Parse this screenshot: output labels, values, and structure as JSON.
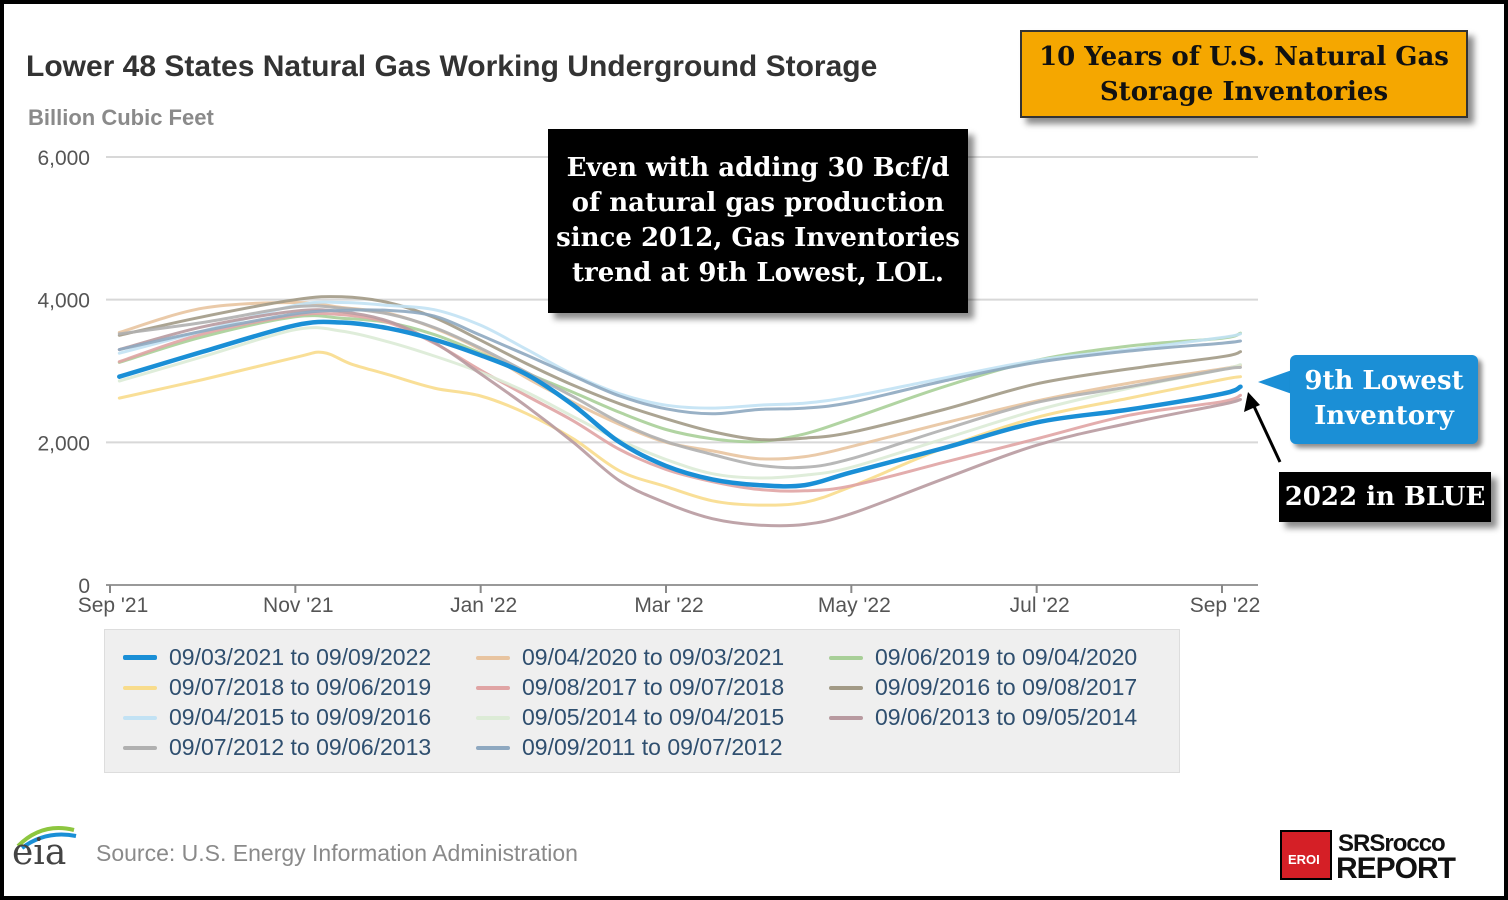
{
  "header": {
    "title": "Lower 48 States Natural Gas Working Underground Storage",
    "unit_label": "Billion Cubic Feet"
  },
  "annotations": {
    "top_right_box": [
      "10 Years of U.S. Natural Gas",
      "Storage Inventories"
    ],
    "center_box": [
      "Even with adding 30 Bcf/d",
      "of natural gas production",
      "since 2012, Gas Inventories",
      "trend at 9th Lowest,  LOL."
    ],
    "callout_box": [
      "9th Lowest",
      "Inventory"
    ],
    "year_box": "2022 in BLUE"
  },
  "footer": {
    "source": "Source: U.S. Energy Information Administration",
    "eia_logo_text": "eia",
    "brand_badge_text": "EROI",
    "brand_line1": "SRSrocco",
    "brand_line2": "REPORT"
  },
  "colors": {
    "frame": "#000000",
    "grid": "#d8d8d8",
    "orange_box": "#f5a700",
    "blue_box": "#1b8fd6"
  },
  "chart_data": {
    "type": "line",
    "ylim": [
      0,
      6000
    ],
    "yticks": [
      0,
      2000,
      4000,
      6000
    ],
    "ytick_labels": [
      "0",
      "2,000",
      "4,000",
      "6,000"
    ],
    "xlim": [
      0,
      12.2
    ],
    "xticks": [
      0,
      2,
      4,
      6,
      8,
      10,
      12
    ],
    "xtick_labels": [
      "Sep '21",
      "Nov '21",
      "Jan '22",
      "Mar '22",
      "May '22",
      "Jul '22",
      "Sep '22"
    ],
    "x_unit": "months since Sep '21",
    "legend_placement": "bottom",
    "grid": true,
    "series": [
      {
        "name": "09/03/2021 to 09/09/2022",
        "color": "#1a8fd6",
        "width": 4.5,
        "x": [
          0.1,
          1,
          2,
          2.5,
          3,
          3.5,
          4,
          4.5,
          5,
          5.5,
          6,
          6.5,
          7,
          7.5,
          8,
          9,
          10,
          11,
          12,
          12.2
        ],
        "y": [
          2920,
          3270,
          3640,
          3680,
          3600,
          3440,
          3220,
          2950,
          2520,
          2000,
          1670,
          1480,
          1400,
          1400,
          1580,
          1920,
          2280,
          2460,
          2680,
          2780
        ]
      },
      {
        "name": "09/04/2020 to 09/03/2021",
        "color": "#e8c4a0",
        "width": 3,
        "x": [
          0.1,
          1,
          2,
          2.5,
          3,
          3.5,
          4,
          4.5,
          5,
          5.5,
          6,
          6.5,
          7,
          7.5,
          8,
          9,
          10,
          11,
          12,
          12.2
        ],
        "y": [
          3540,
          3880,
          3960,
          3890,
          3810,
          3600,
          3300,
          2900,
          2560,
          2250,
          2000,
          1880,
          1770,
          1800,
          1940,
          2270,
          2580,
          2830,
          3030,
          3080
        ]
      },
      {
        "name": "09/06/2019 to 09/04/2020",
        "color": "#a8cf98",
        "width": 3,
        "x": [
          0.1,
          1,
          2,
          2.5,
          3,
          3.5,
          4,
          4.5,
          5,
          5.5,
          6,
          6.5,
          7,
          7.5,
          8,
          9,
          10,
          11,
          12,
          12.2
        ],
        "y": [
          3120,
          3480,
          3760,
          3740,
          3680,
          3510,
          3250,
          2970,
          2700,
          2420,
          2180,
          2050,
          2010,
          2120,
          2330,
          2780,
          3150,
          3350,
          3460,
          3530
        ]
      },
      {
        "name": "09/07/2018 to 09/06/2019",
        "color": "#f8dc8c",
        "width": 3,
        "x": [
          0.1,
          1,
          2,
          2.3,
          2.6,
          3,
          3.5,
          4,
          4.5,
          5,
          5.5,
          6,
          6.5,
          7,
          7.5,
          8,
          9,
          10,
          11,
          12,
          12.2
        ],
        "y": [
          2620,
          2880,
          3190,
          3260,
          3100,
          2950,
          2760,
          2650,
          2400,
          2050,
          1600,
          1380,
          1180,
          1120,
          1160,
          1380,
          1920,
          2350,
          2620,
          2880,
          2920
        ]
      },
      {
        "name": "09/08/2017 to 09/07/2018",
        "color": "#e0a4a4",
        "width": 3,
        "x": [
          0.1,
          1,
          2,
          2.5,
          3,
          3.5,
          4,
          4.5,
          5,
          5.5,
          6,
          6.5,
          7,
          7.5,
          8,
          9,
          10,
          11,
          12,
          12.2
        ],
        "y": [
          3130,
          3520,
          3780,
          3790,
          3680,
          3390,
          3010,
          2650,
          2300,
          1900,
          1620,
          1450,
          1340,
          1320,
          1390,
          1720,
          2050,
          2380,
          2570,
          2660
        ]
      },
      {
        "name": "09/09/2016 to 09/08/2017",
        "color": "#a29a86",
        "width": 3,
        "x": [
          0.1,
          1,
          2,
          2.5,
          3,
          3.5,
          4,
          4.5,
          5,
          5.5,
          6,
          6.5,
          7,
          7.5,
          8,
          9,
          10,
          11,
          12,
          12.2
        ],
        "y": [
          3500,
          3760,
          4000,
          4040,
          3960,
          3750,
          3430,
          3100,
          2800,
          2540,
          2330,
          2150,
          2040,
          2060,
          2140,
          2460,
          2820,
          3030,
          3200,
          3270
        ]
      },
      {
        "name": "09/04/2015 to 09/09/2016",
        "color": "#c2e2f4",
        "width": 3,
        "x": [
          0.1,
          1,
          2,
          2.5,
          3,
          3.5,
          4,
          4.5,
          5,
          5.5,
          6,
          6.5,
          7,
          7.5,
          8,
          9,
          10,
          11,
          12,
          12.2
        ],
        "y": [
          3250,
          3560,
          3920,
          3960,
          3920,
          3860,
          3640,
          3300,
          2950,
          2680,
          2520,
          2480,
          2520,
          2550,
          2640,
          2900,
          3150,
          3300,
          3470,
          3520
        ]
      },
      {
        "name": "09/05/2014 to 09/04/2015",
        "color": "#dcebd6",
        "width": 3,
        "x": [
          0.1,
          1,
          2,
          2.5,
          3,
          3.5,
          4,
          4.5,
          5,
          5.5,
          6,
          6.5,
          7,
          7.5,
          8,
          9,
          10,
          11,
          12,
          12.2
        ],
        "y": [
          2860,
          3200,
          3580,
          3560,
          3410,
          3210,
          2980,
          2700,
          2360,
          2030,
          1760,
          1560,
          1500,
          1540,
          1650,
          2050,
          2450,
          2760,
          3020,
          3090
        ]
      },
      {
        "name": "09/06/2013 to 09/05/2014",
        "color": "#b89aa0",
        "width": 3,
        "x": [
          0.1,
          1,
          2,
          2.5,
          3,
          3.5,
          4,
          4.5,
          5,
          5.5,
          6,
          6.5,
          7,
          7.5,
          8,
          9,
          10,
          11,
          12,
          12.2
        ],
        "y": [
          3300,
          3620,
          3840,
          3830,
          3700,
          3400,
          2960,
          2500,
          2000,
          1460,
          1150,
          930,
          840,
          850,
          1000,
          1490,
          1960,
          2270,
          2530,
          2600
        ]
      },
      {
        "name": "09/07/2012 to 09/06/2013",
        "color": "#b0b0b0",
        "width": 3,
        "x": [
          0.1,
          1,
          2,
          2.5,
          3,
          3.5,
          4,
          4.5,
          5,
          5.5,
          6,
          6.5,
          7,
          7.5,
          8,
          9,
          10,
          11,
          12,
          12.2
        ],
        "y": [
          3520,
          3680,
          3900,
          3880,
          3800,
          3610,
          3320,
          2980,
          2640,
          2280,
          2010,
          1830,
          1680,
          1650,
          1770,
          2180,
          2560,
          2780,
          3020,
          3050
        ]
      },
      {
        "name": "09/09/2011 to 09/07/2012",
        "color": "#8ea8c0",
        "width": 3,
        "x": [
          0.1,
          1,
          2,
          2.5,
          3,
          3.5,
          4,
          4.5,
          5,
          5.5,
          6,
          6.5,
          7,
          7.5,
          8,
          9,
          10,
          11,
          12,
          12.2
        ],
        "y": [
          3300,
          3560,
          3800,
          3850,
          3850,
          3770,
          3500,
          3220,
          2930,
          2650,
          2470,
          2400,
          2460,
          2480,
          2560,
          2860,
          3120,
          3280,
          3390,
          3420
        ]
      }
    ]
  }
}
